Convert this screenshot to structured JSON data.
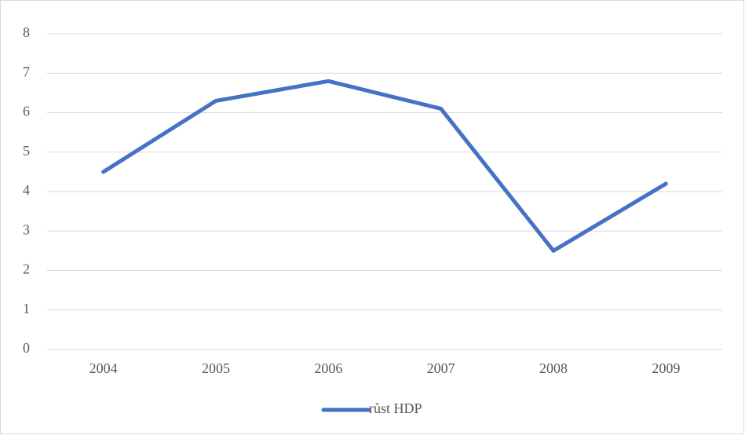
{
  "chart_data": {
    "type": "line",
    "categories": [
      "2004",
      "2005",
      "2006",
      "2007",
      "2008",
      "2009"
    ],
    "series": [
      {
        "name": "růst HDP",
        "color": "#4472c4",
        "values": [
          4.5,
          6.3,
          6.8,
          6.1,
          2.5,
          4.2
        ]
      }
    ],
    "ylim": [
      0,
      8
    ],
    "yticks": [
      0,
      1,
      2,
      3,
      4,
      5,
      6,
      7,
      8
    ],
    "grid": true,
    "legend": "bottom"
  }
}
